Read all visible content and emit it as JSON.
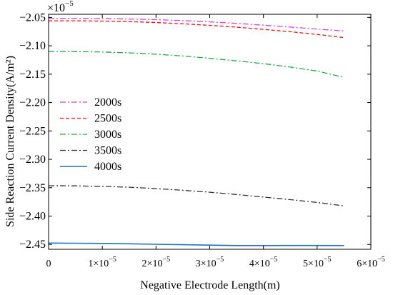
{
  "chart_data": {
    "type": "line",
    "title": "",
    "xlabel": "Negative Electrode Length(m)",
    "ylabel": "Side Reaction Current Density(A/m²)",
    "y_multiplier": "×10",
    "y_multiplier_exp": "−5",
    "xlim": [
      0,
      6e-05
    ],
    "ylim": [
      -2.4585e-05,
      -2.0445e-05
    ],
    "x_ticks": [
      {
        "value": 0,
        "label": "0"
      },
      {
        "value": 1e-05,
        "label": "1×10",
        "exp": "−5"
      },
      {
        "value": 2e-05,
        "label": "2×10",
        "exp": "−5"
      },
      {
        "value": 3e-05,
        "label": "3×10",
        "exp": "−5"
      },
      {
        "value": 4e-05,
        "label": "4×10",
        "exp": "−5"
      },
      {
        "value": 5e-05,
        "label": "5×10",
        "exp": "−5"
      },
      {
        "value": 6e-05,
        "label": "6×10",
        "exp": "−5"
      }
    ],
    "y_ticks": [
      {
        "value": -2.05e-05,
        "label": "−2.05"
      },
      {
        "value": -2.1e-05,
        "label": "−2.10"
      },
      {
        "value": -2.15e-05,
        "label": "−2.15"
      },
      {
        "value": -2.2e-05,
        "label": "−2.20"
      },
      {
        "value": -2.25e-05,
        "label": "−2.25"
      },
      {
        "value": -2.3e-05,
        "label": "−2.30"
      },
      {
        "value": -2.35e-05,
        "label": "−2.35"
      },
      {
        "value": -2.4e-05,
        "label": "−2.40"
      },
      {
        "value": -2.45e-05,
        "label": "−2.45"
      }
    ],
    "grid": false,
    "legend_position": "middle-left",
    "x": [
      0,
      5e-06,
      1e-05,
      1.5e-05,
      2e-05,
      2.5e-05,
      3e-05,
      3.5e-05,
      4e-05,
      4.5e-05,
      5e-05,
      5.5e-05
    ],
    "series": [
      {
        "name": "2000s",
        "color": "#cc44ee",
        "dash": "dashdot",
        "values": [
          -2.0515e-05,
          -2.0515e-05,
          -2.052e-05,
          -2.0528e-05,
          -2.054e-05,
          -2.0557e-05,
          -2.0578e-05,
          -2.0605e-05,
          -2.0637e-05,
          -2.067e-05,
          -2.0705e-05,
          -2.074e-05
        ]
      },
      {
        "name": "2500s",
        "color": "#ee1111",
        "dash": "dashed",
        "values": [
          -2.056e-05,
          -2.056e-05,
          -2.0565e-05,
          -2.0575e-05,
          -2.059e-05,
          -2.0612e-05,
          -2.064e-05,
          -2.0672e-05,
          -2.071e-05,
          -2.0752e-05,
          -2.08e-05,
          -2.0855e-05
        ]
      },
      {
        "name": "3000s",
        "color": "#22aa44",
        "dash": "dashdot",
        "values": [
          -2.11e-05,
          -2.1102e-05,
          -2.111e-05,
          -2.1125e-05,
          -2.1148e-05,
          -2.118e-05,
          -2.122e-05,
          -2.1265e-05,
          -2.1315e-05,
          -2.1375e-05,
          -2.1445e-05,
          -2.1555e-05
        ]
      },
      {
        "name": "3500s",
        "color": "#333333",
        "dash": "dashdot",
        "values": [
          -2.3465e-05,
          -2.3468e-05,
          -2.3478e-05,
          -2.3492e-05,
          -2.3515e-05,
          -2.3545e-05,
          -2.358e-05,
          -2.362e-05,
          -2.3665e-05,
          -2.371e-05,
          -2.376e-05,
          -2.382e-05
        ]
      },
      {
        "name": "4000s",
        "color": "#1f6fcf",
        "dash": "solid",
        "values": [
          -2.4475e-05,
          -2.4478e-05,
          -2.4482e-05,
          -2.4488e-05,
          -2.4497e-05,
          -2.4505e-05,
          -2.4512e-05,
          -2.452e-05,
          -2.452e-05,
          -2.4518e-05,
          -2.4518e-05,
          -2.452e-05
        ]
      }
    ]
  }
}
